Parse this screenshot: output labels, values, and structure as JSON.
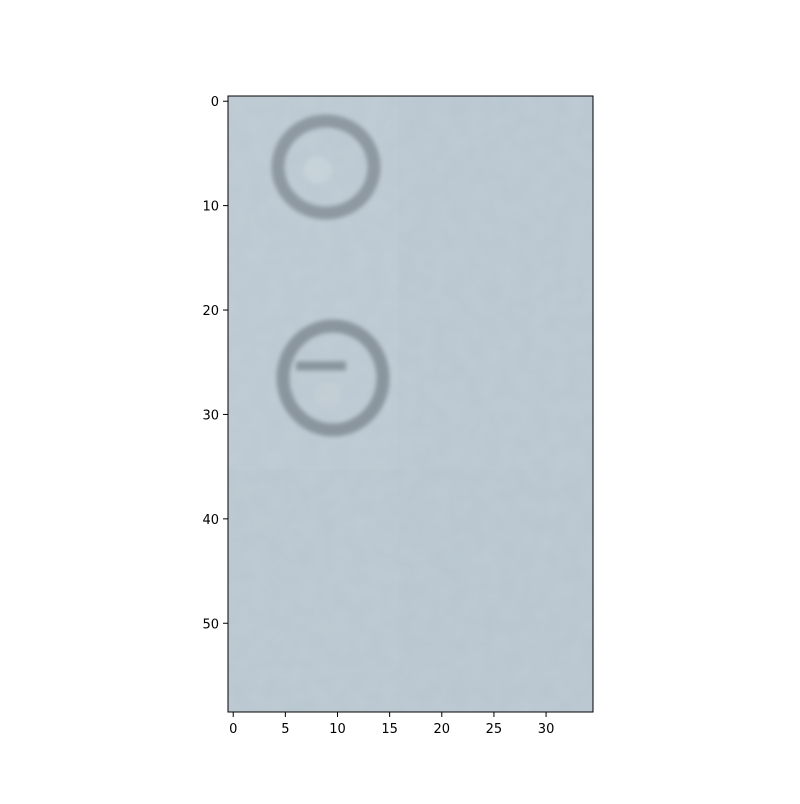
{
  "image_view": {
    "x_ticks": [
      "0",
      "5",
      "10",
      "15",
      "20",
      "25",
      "30"
    ],
    "y_ticks": [
      "0",
      "10",
      "20",
      "30",
      "40",
      "50"
    ],
    "content": {
      "background_color": "#b8c6d0",
      "ring_color": "#8e99a1",
      "description": "blurred grey-blue surface with two small circular marks"
    }
  }
}
